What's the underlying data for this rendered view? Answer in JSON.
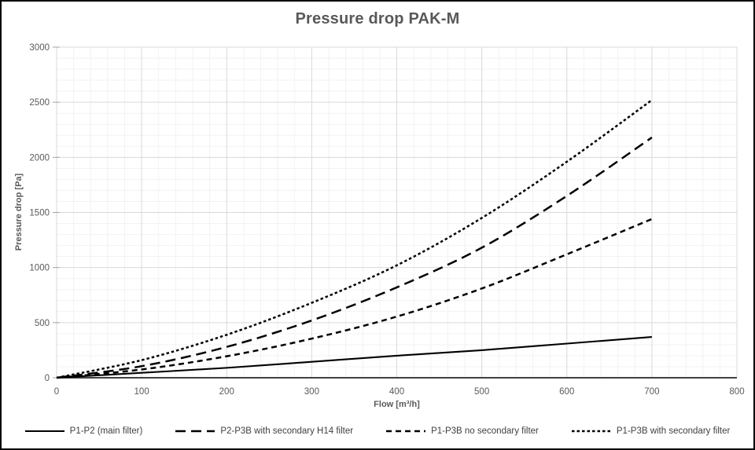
{
  "chart_data": {
    "type": "line",
    "title": "Pressure drop PAK-M",
    "xlabel": "Flow [m³/h]",
    "ylabel": "Pressure drop [Pa]",
    "xlim": [
      0,
      800
    ],
    "ylim": [
      0,
      3000
    ],
    "x_ticks": [
      0,
      100,
      200,
      300,
      400,
      500,
      600,
      700,
      800
    ],
    "y_ticks": [
      0,
      500,
      1000,
      1500,
      2000,
      2500,
      3000
    ],
    "minor_grid": {
      "x_step": 20,
      "y_step": 100
    },
    "grid": true,
    "legend_position": "bottom",
    "x": [
      0,
      100,
      200,
      300,
      400,
      500,
      600,
      700
    ],
    "series": [
      {
        "name": "P1-P2 (main filter)",
        "dash": "solid",
        "values": [
          0,
          45,
          90,
          145,
          200,
          250,
          310,
          370
        ]
      },
      {
        "name": "P2-P3B with secondary H14 filter",
        "dash": "long-dash",
        "values": [
          0,
          105,
          280,
          520,
          820,
          1180,
          1650,
          2180
        ]
      },
      {
        "name": "P1-P3B no secondary filter",
        "dash": "medium-dash",
        "values": [
          0,
          75,
          195,
          355,
          555,
          810,
          1120,
          1440
        ]
      },
      {
        "name": "P1-P3B with secondary filter",
        "dash": "short-dash",
        "values": [
          0,
          160,
          390,
          680,
          1020,
          1450,
          1960,
          2520
        ]
      }
    ],
    "colors": {
      "line": "#000000",
      "major_grid": "#d9d9d9",
      "minor_grid": "#f2f2f2",
      "axis": "#262626",
      "tick": "#a6a6a6",
      "text": "#595959",
      "legend_text": "#404040"
    }
  }
}
